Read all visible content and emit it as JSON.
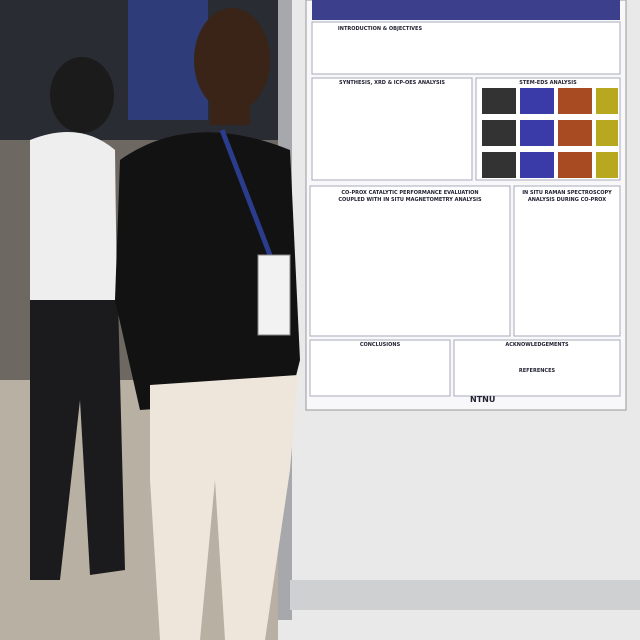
{
  "poster": {
    "sections": [
      {
        "title": "INTRODUCTION & OBJECTIVES"
      },
      {
        "title": "SYNTHESIS, XRD & ICP-OES ANALYSIS"
      },
      {
        "title": "STEM-EDS ANALYSIS"
      },
      {
        "title": "CO-PROX CATALYTIC PERFORMANCE EVALUATION"
      },
      {
        "title": "COUPLED WITH IN SITU MAGNETOMETRY ANALYSIS"
      },
      {
        "title": "IN SITU RAMAN SPECTROSCOPY"
      },
      {
        "title": "ANALYSIS DURING CO-PROX"
      },
      {
        "title": "CONCLUSIONS"
      },
      {
        "title": "ACKNOWLEDGEMENTS"
      },
      {
        "title": "REFERENCES"
      }
    ],
    "logo": "NTNU"
  }
}
